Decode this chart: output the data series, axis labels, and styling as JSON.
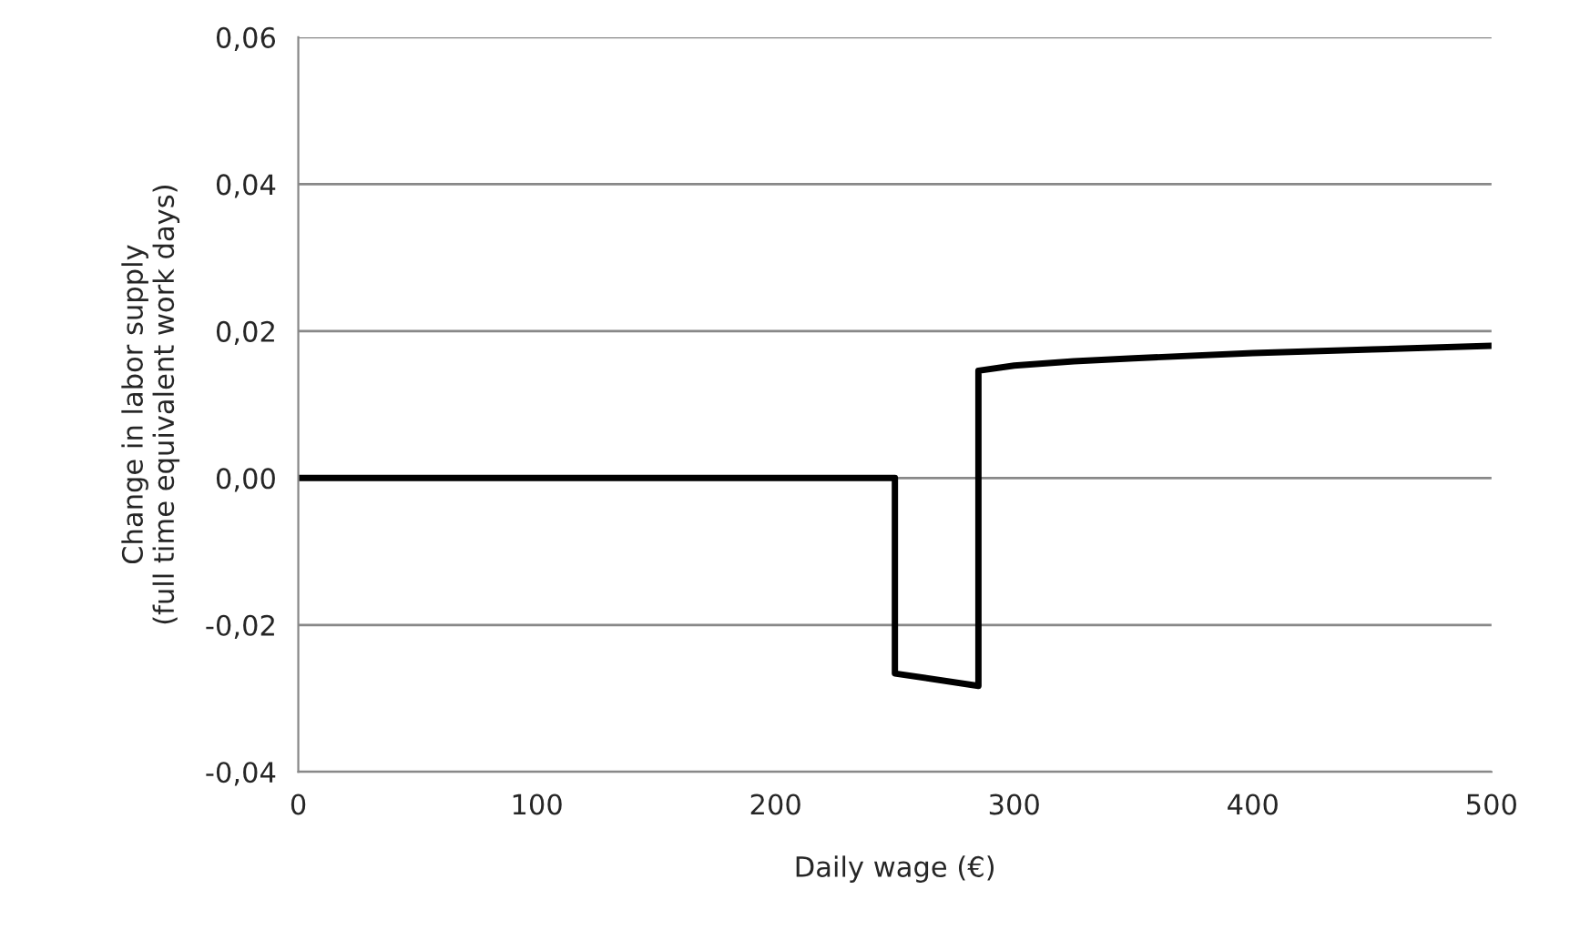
{
  "chart_data": {
    "type": "line",
    "xlabel": "Daily wage (€)",
    "ylabel": "Change in labor supply\n(full time equivalent work days)",
    "xlim": [
      0,
      500
    ],
    "xticks": [
      0,
      100,
      200,
      300,
      400,
      500
    ],
    "ylim": [
      -0.04,
      0.06
    ],
    "yticks": [
      {
        "value": -0.04,
        "label": "-0,04"
      },
      {
        "value": -0.02,
        "label": "-0,02"
      },
      {
        "value": 0,
        "label": "0,00"
      },
      {
        "value": 0.02,
        "label": "0,02"
      },
      {
        "value": 0.04,
        "label": "0,04"
      },
      {
        "value": 0.06,
        "label": "0,06"
      }
    ],
    "grid": "y",
    "marker": "none",
    "line_style": "solid",
    "series": [
      {
        "color": "#000000",
        "x": [
          0,
          250,
          250,
          285,
          285,
          300,
          325,
          350,
          400,
          450,
          500
        ],
        "values": [
          0,
          0,
          -0.0266,
          -0.0283,
          0.0146,
          0.0153,
          0.0159,
          0.0163,
          0.017,
          0.0175,
          0.018
        ]
      }
    ]
  }
}
